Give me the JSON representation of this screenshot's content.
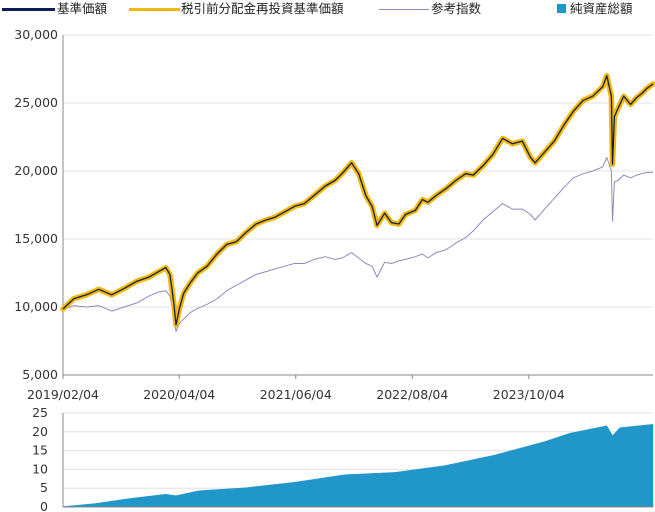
{
  "legend": {
    "nav_label": "基準価額",
    "reinvest_label": "税引前分配金再投資基準価額",
    "ref_label": "参考指数",
    "assets_label": "純資産総額"
  },
  "colors": {
    "nav": "#0d1f57",
    "reinvest": "#f5b800",
    "ref": "#9188bf",
    "assets": "#2196c9",
    "grid": "#e3e3e3",
    "axis": "#888888"
  },
  "chart_data": [
    {
      "type": "line",
      "ylim": [
        5000,
        30000
      ],
      "yticks": [
        5000,
        10000,
        15000,
        20000,
        25000,
        30000
      ],
      "ytick_labels": [
        "5,000",
        "10,000",
        "15,000",
        "20,000",
        "25,000",
        "30,000"
      ],
      "xlim": [
        "2019-02-04",
        "2024-12-31"
      ],
      "xticks": [
        "2019-02-04",
        "2020-04-04",
        "2021-06-04",
        "2022-08-04",
        "2023-10-04"
      ],
      "xtick_labels": [
        "2019/02/04",
        "2020/04/04",
        "2021/06/04",
        "2022/08/04",
        "2023/10/04"
      ],
      "grid": "horizontal",
      "legend_position": "top",
      "series": [
        {
          "name": "基準価額",
          "x": [
            "2019-02-04",
            "2019-03-15",
            "2019-05-01",
            "2019-06-15",
            "2019-08-01",
            "2019-09-15",
            "2019-11-01",
            "2019-12-15",
            "2020-01-20",
            "2020-02-15",
            "2020-03-01",
            "2020-03-15",
            "2020-03-23",
            "2020-04-05",
            "2020-04-20",
            "2020-05-15",
            "2020-06-10",
            "2020-07-15",
            "2020-08-20",
            "2020-09-25",
            "2020-10-30",
            "2020-12-05",
            "2021-01-10",
            "2021-02-15",
            "2021-03-20",
            "2021-04-25",
            "2021-05-30",
            "2021-07-05",
            "2021-08-10",
            "2021-09-20",
            "2021-10-25",
            "2021-11-20",
            "2021-12-25",
            "2022-01-20",
            "2022-02-15",
            "2022-03-10",
            "2022-03-28",
            "2022-04-25",
            "2022-05-20",
            "2022-06-16",
            "2022-07-10",
            "2022-08-15",
            "2022-09-10",
            "2022-09-30",
            "2022-10-30",
            "2022-12-05",
            "2023-01-10",
            "2023-02-15",
            "2023-03-15",
            "2023-04-20",
            "2023-05-25",
            "2023-06-30",
            "2023-08-05",
            "2023-09-10",
            "2023-10-10",
            "2023-10-27",
            "2023-12-01",
            "2024-01-05",
            "2024-02-10",
            "2024-03-15",
            "2024-04-20",
            "2024-05-25",
            "2024-06-30",
            "2024-07-15",
            "2024-08-01",
            "2024-08-05",
            "2024-08-12",
            "2024-08-25",
            "2024-09-15",
            "2024-10-10",
            "2024-11-01",
            "2024-11-20",
            "2024-12-10",
            "2024-12-31"
          ],
          "values": [
            9850,
            10600,
            10900,
            11300,
            10900,
            11350,
            11900,
            12200,
            12600,
            12900,
            12400,
            10300,
            8700,
            9900,
            11000,
            11800,
            12500,
            13000,
            13900,
            14600,
            14800,
            15500,
            16100,
            16400,
            16600,
            17000,
            17400,
            17600,
            18200,
            18900,
            19300,
            19800,
            20600,
            19800,
            18200,
            17400,
            16000,
            16900,
            16200,
            16100,
            16800,
            17100,
            17900,
            17700,
            18200,
            18700,
            19300,
            19800,
            19700,
            20400,
            21200,
            22400,
            22000,
            22200,
            21000,
            20600,
            21400,
            22200,
            23400,
            24400,
            25200,
            25500,
            26200,
            27000,
            25500,
            20500,
            24000,
            24600,
            25500,
            24900,
            25400,
            25700,
            26100,
            26400
          ]
        },
        {
          "name": "税引前分配金再投資基準価額",
          "x": [
            "2019-02-04",
            "2019-03-15",
            "2019-05-01",
            "2019-06-15",
            "2019-08-01",
            "2019-09-15",
            "2019-11-01",
            "2019-12-15",
            "2020-01-20",
            "2020-02-15",
            "2020-03-01",
            "2020-03-15",
            "2020-03-23",
            "2020-04-05",
            "2020-04-20",
            "2020-05-15",
            "2020-06-10",
            "2020-07-15",
            "2020-08-20",
            "2020-09-25",
            "2020-10-30",
            "2020-12-05",
            "2021-01-10",
            "2021-02-15",
            "2021-03-20",
            "2021-04-25",
            "2021-05-30",
            "2021-07-05",
            "2021-08-10",
            "2021-09-20",
            "2021-10-25",
            "2021-11-20",
            "2021-12-25",
            "2022-01-20",
            "2022-02-15",
            "2022-03-10",
            "2022-03-28",
            "2022-04-25",
            "2022-05-20",
            "2022-06-16",
            "2022-07-10",
            "2022-08-15",
            "2022-09-10",
            "2022-09-30",
            "2022-10-30",
            "2022-12-05",
            "2023-01-10",
            "2023-02-15",
            "2023-03-15",
            "2023-04-20",
            "2023-05-25",
            "2023-06-30",
            "2023-08-05",
            "2023-09-10",
            "2023-10-10",
            "2023-10-27",
            "2023-12-01",
            "2024-01-05",
            "2024-02-10",
            "2024-03-15",
            "2024-04-20",
            "2024-05-25",
            "2024-06-30",
            "2024-07-15",
            "2024-08-01",
            "2024-08-05",
            "2024-08-12",
            "2024-08-25",
            "2024-09-15",
            "2024-10-10",
            "2024-11-01",
            "2024-11-20",
            "2024-12-10",
            "2024-12-31"
          ],
          "values": [
            9850,
            10600,
            10900,
            11300,
            10900,
            11350,
            11900,
            12200,
            12600,
            12900,
            12400,
            10300,
            8700,
            9900,
            11000,
            11800,
            12500,
            13000,
            13900,
            14600,
            14800,
            15500,
            16100,
            16400,
            16600,
            17000,
            17400,
            17600,
            18200,
            18900,
            19300,
            19800,
            20600,
            19800,
            18200,
            17400,
            16000,
            16900,
            16200,
            16100,
            16800,
            17100,
            17900,
            17700,
            18200,
            18700,
            19300,
            19800,
            19700,
            20400,
            21200,
            22400,
            22000,
            22200,
            21000,
            20600,
            21400,
            22200,
            23400,
            24400,
            25200,
            25500,
            26200,
            27000,
            25500,
            20500,
            24000,
            24600,
            25500,
            24900,
            25400,
            25700,
            26100,
            26400
          ]
        },
        {
          "name": "参考指数",
          "x": [
            "2019-02-04",
            "2019-03-15",
            "2019-05-01",
            "2019-06-15",
            "2019-08-01",
            "2019-09-15",
            "2019-11-01",
            "2019-12-15",
            "2020-01-20",
            "2020-02-15",
            "2020-03-01",
            "2020-03-15",
            "2020-03-23",
            "2020-04-05",
            "2020-04-20",
            "2020-05-15",
            "2020-06-10",
            "2020-07-15",
            "2020-08-20",
            "2020-09-25",
            "2020-10-30",
            "2020-12-05",
            "2021-01-10",
            "2021-02-15",
            "2021-03-20",
            "2021-04-25",
            "2021-05-30",
            "2021-07-05",
            "2021-08-10",
            "2021-09-20",
            "2021-10-25",
            "2021-11-20",
            "2021-12-25",
            "2022-01-20",
            "2022-02-15",
            "2022-03-10",
            "2022-03-28",
            "2022-04-25",
            "2022-05-20",
            "2022-06-16",
            "2022-07-10",
            "2022-08-15",
            "2022-09-10",
            "2022-09-30",
            "2022-10-30",
            "2022-12-05",
            "2023-01-10",
            "2023-02-15",
            "2023-03-15",
            "2023-04-20",
            "2023-05-25",
            "2023-06-30",
            "2023-08-05",
            "2023-09-10",
            "2023-10-10",
            "2023-10-27",
            "2023-12-01",
            "2024-01-05",
            "2024-02-10",
            "2024-03-15",
            "2024-04-20",
            "2024-05-25",
            "2024-06-30",
            "2024-07-15",
            "2024-08-01",
            "2024-08-05",
            "2024-08-12",
            "2024-08-25",
            "2024-09-15",
            "2024-10-10",
            "2024-11-01",
            "2024-11-20",
            "2024-12-10",
            "2024-12-31"
          ],
          "values": [
            9800,
            10100,
            10000,
            10100,
            9700,
            10000,
            10300,
            10800,
            11100,
            11200,
            10800,
            9400,
            8200,
            8800,
            9100,
            9600,
            9900,
            10200,
            10600,
            11200,
            11600,
            12000,
            12400,
            12600,
            12800,
            13000,
            13200,
            13200,
            13500,
            13700,
            13500,
            13600,
            14000,
            13600,
            13200,
            13000,
            12200,
            13300,
            13200,
            13400,
            13500,
            13700,
            13900,
            13600,
            14000,
            14200,
            14700,
            15100,
            15600,
            16400,
            17000,
            17600,
            17200,
            17200,
            16800,
            16400,
            17200,
            18000,
            18800,
            19500,
            19800,
            20000,
            20300,
            21000,
            20000,
            16300,
            19200,
            19300,
            19700,
            19500,
            19700,
            19800,
            19900,
            19900
          ]
        }
      ]
    },
    {
      "type": "area",
      "ylim": [
        0,
        25
      ],
      "yticks": [
        0,
        5,
        10,
        15,
        20,
        25
      ],
      "ytick_labels": [
        "0",
        "5",
        "10",
        "15",
        "20",
        "25"
      ],
      "xlim": [
        "2019-02-04",
        "2024-12-31"
      ],
      "grid": "horizontal",
      "series": [
        {
          "name": "純資産総額",
          "x": [
            "2019-02-04",
            "2019-06-01",
            "2019-10-01",
            "2020-02-15",
            "2020-03-23",
            "2020-06-15",
            "2020-12-01",
            "2021-06-01",
            "2021-12-01",
            "2022-06-01",
            "2022-12-01",
            "2023-06-01",
            "2023-12-01",
            "2024-03-01",
            "2024-07-15",
            "2024-08-05",
            "2024-09-01",
            "2024-12-31"
          ],
          "values": [
            0.1,
            0.9,
            2.2,
            3.4,
            3.0,
            4.3,
            5.1,
            6.6,
            8.6,
            9.2,
            11.0,
            13.8,
            17.4,
            19.6,
            21.6,
            19.0,
            21.1,
            22.0
          ]
        }
      ]
    }
  ]
}
